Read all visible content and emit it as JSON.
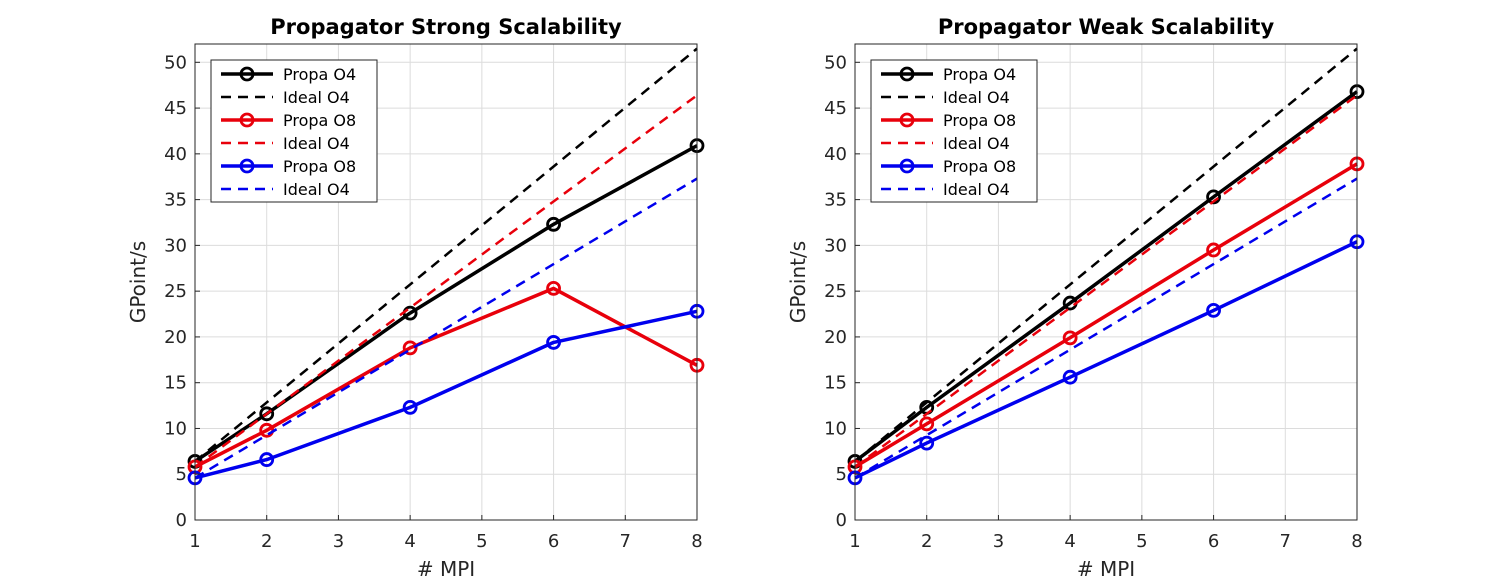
{
  "chart_data": [
    {
      "type": "line",
      "title": "Propagator Strong Scalability",
      "xlabel": "# MPI",
      "ylabel": "GPoint/s",
      "xlim": [
        1,
        8
      ],
      "ylim": [
        0,
        52
      ],
      "xticks": [
        1,
        2,
        3,
        4,
        5,
        6,
        7,
        8
      ],
      "yticks": [
        0,
        5,
        10,
        15,
        20,
        25,
        30,
        35,
        40,
        45,
        50
      ],
      "grid": true,
      "legend_position": "top-left",
      "series": [
        {
          "name": "Propa O4",
          "color": "#000000",
          "style": "solid-marker",
          "x": [
            1,
            2,
            4,
            6,
            8
          ],
          "y": [
            6.4,
            11.6,
            22.6,
            32.3,
            40.9
          ]
        },
        {
          "name": "Ideal O4",
          "color": "#000000",
          "style": "dashed",
          "x": [
            1,
            8
          ],
          "y": [
            6.4,
            51.5
          ]
        },
        {
          "name": "Propa O8",
          "color": "#e8000b",
          "style": "solid-marker",
          "x": [
            1,
            2,
            4,
            6,
            8
          ],
          "y": [
            5.8,
            9.8,
            18.8,
            25.3,
            16.9
          ]
        },
        {
          "name": "Ideal O4",
          "color": "#e8000b",
          "style": "dashed",
          "x": [
            1,
            8
          ],
          "y": [
            5.8,
            46.4
          ]
        },
        {
          "name": "Propa O8",
          "color": "#0000ee",
          "style": "solid-marker",
          "x": [
            1,
            2,
            4,
            6,
            8
          ],
          "y": [
            4.6,
            6.6,
            12.3,
            19.4,
            22.8
          ]
        },
        {
          "name": "Ideal O4",
          "color": "#0000ee",
          "style": "dashed",
          "x": [
            1,
            8
          ],
          "y": [
            4.6,
            37.3
          ]
        }
      ]
    },
    {
      "type": "line",
      "title": "Propagator Weak Scalability",
      "xlabel": "# MPI",
      "ylabel": "GPoint/s",
      "xlim": [
        1,
        8
      ],
      "ylim": [
        0,
        52
      ],
      "xticks": [
        1,
        2,
        3,
        4,
        5,
        6,
        7,
        8
      ],
      "yticks": [
        0,
        5,
        10,
        15,
        20,
        25,
        30,
        35,
        40,
        45,
        50
      ],
      "grid": true,
      "legend_position": "top-left",
      "series": [
        {
          "name": "Propa O4",
          "color": "#000000",
          "style": "solid-marker",
          "x": [
            1,
            2,
            4,
            6,
            8
          ],
          "y": [
            6.4,
            12.3,
            23.7,
            35.3,
            46.8
          ]
        },
        {
          "name": "Ideal O4",
          "color": "#000000",
          "style": "dashed",
          "x": [
            1,
            8
          ],
          "y": [
            6.4,
            51.5
          ]
        },
        {
          "name": "Propa O8",
          "color": "#e8000b",
          "style": "solid-marker",
          "x": [
            1,
            2,
            4,
            6,
            8
          ],
          "y": [
            5.8,
            10.5,
            19.9,
            29.5,
            38.9
          ]
        },
        {
          "name": "Ideal O4",
          "color": "#e8000b",
          "style": "dashed",
          "x": [
            1,
            8
          ],
          "y": [
            5.8,
            46.4
          ]
        },
        {
          "name": "Propa O8",
          "color": "#0000ee",
          "style": "solid-marker",
          "x": [
            1,
            2,
            4,
            6,
            8
          ],
          "y": [
            4.6,
            8.4,
            15.6,
            22.9,
            30.4
          ]
        },
        {
          "name": "Ideal O4",
          "color": "#0000ee",
          "style": "dashed",
          "x": [
            1,
            8
          ],
          "y": [
            4.6,
            37.3
          ]
        }
      ]
    }
  ]
}
